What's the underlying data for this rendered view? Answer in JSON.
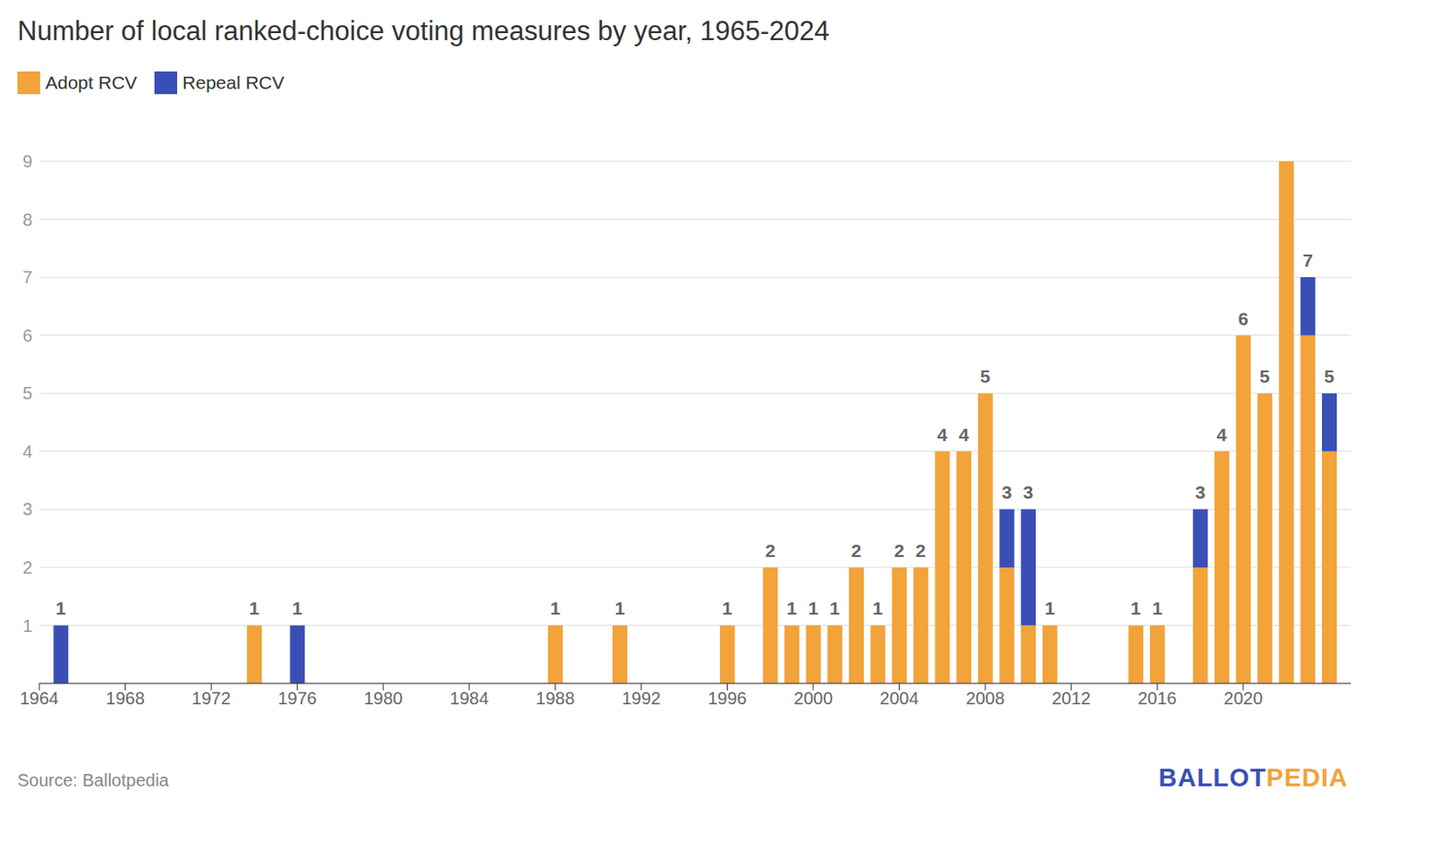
{
  "chart_data": {
    "type": "bar",
    "title": "Number of local ranked-choice voting measures by year, 1965-2024",
    "source": "Source: Ballotpedia",
    "logo": [
      "BALLOT",
      "PEDIA"
    ],
    "x": [
      1965,
      1974,
      1976,
      1988,
      1991,
      1996,
      1998,
      1999,
      2000,
      2001,
      2002,
      2003,
      2004,
      2005,
      2006,
      2007,
      2008,
      2009,
      2010,
      2011,
      2015,
      2016,
      2018,
      2019,
      2020,
      2021,
      2022,
      2023,
      2024
    ],
    "series": [
      {
        "name": "Adopt RCV",
        "color": "#f2a33a",
        "values": [
          null,
          1,
          null,
          1,
          1,
          1,
          2,
          1,
          1,
          1,
          2,
          1,
          2,
          2,
          4,
          4,
          5,
          2,
          1,
          1,
          1,
          1,
          2,
          4,
          6,
          5,
          9,
          6,
          4
        ]
      },
      {
        "name": "Repeal RCV",
        "color": "#3a4fb5",
        "values": [
          1,
          null,
          1,
          null,
          null,
          null,
          null,
          null,
          null,
          null,
          null,
          null,
          null,
          null,
          null,
          null,
          null,
          1,
          2,
          null,
          null,
          null,
          1,
          null,
          null,
          null,
          null,
          1,
          1
        ]
      }
    ],
    "totals": [
      1,
      1,
      1,
      1,
      1,
      1,
      2,
      1,
      1,
      1,
      2,
      1,
      2,
      2,
      4,
      4,
      5,
      3,
      3,
      1,
      1,
      1,
      3,
      4,
      6,
      5,
      9,
      7,
      5
    ],
    "xlim": [
      1964,
      2025
    ],
    "xticks": [
      1964,
      1968,
      1972,
      1976,
      1980,
      1984,
      1988,
      1992,
      1996,
      2000,
      2004,
      2008,
      2012,
      2016,
      2020
    ],
    "ylim": [
      0,
      9
    ],
    "yticks": [
      1,
      2,
      3,
      4,
      5,
      6,
      7,
      8,
      9
    ],
    "stacked": true,
    "grid": true,
    "legend": "top-left"
  }
}
